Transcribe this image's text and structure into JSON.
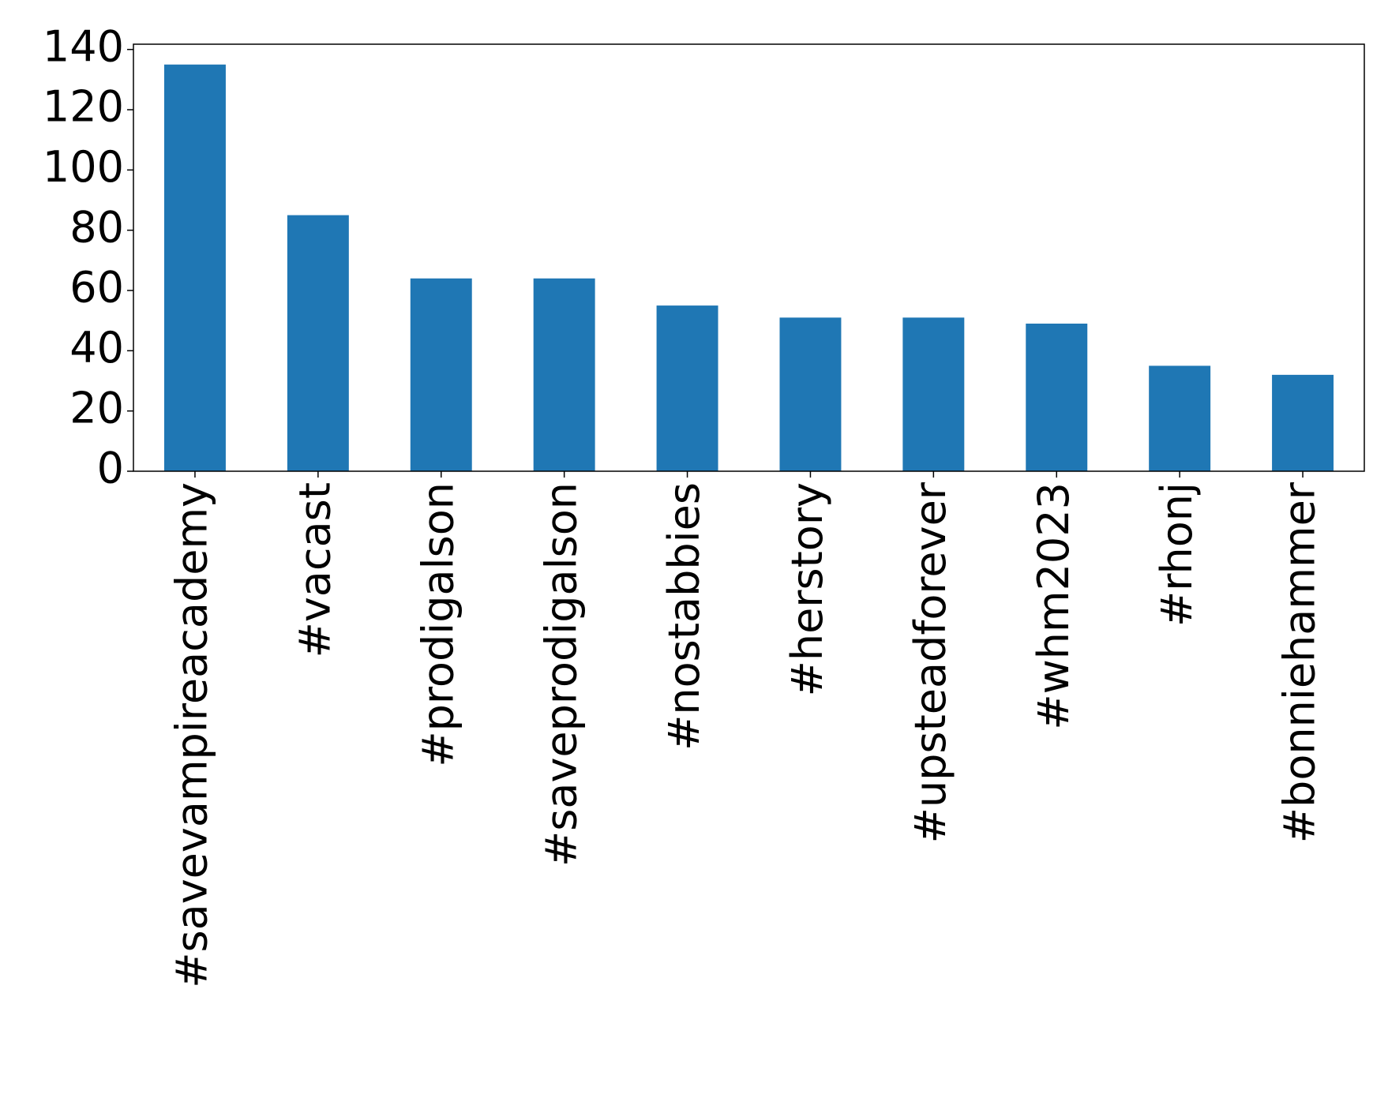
{
  "chart_data": {
    "type": "bar",
    "categories": [
      "#savevampireacademy",
      "#vacast",
      "#prodigalson",
      "#saveprodigalson",
      "#nostabbies",
      "#herstory",
      "#upsteadforever",
      "#whm2023",
      "#rhonj",
      "#bonniehammer"
    ],
    "values": [
      135,
      85,
      64,
      64,
      55,
      51,
      51,
      49,
      35,
      32
    ],
    "color": "#1f77b4",
    "ylim": [
      0,
      141.75
    ],
    "yticks": [
      0,
      20,
      40,
      60,
      80,
      100,
      120,
      140
    ],
    "grid": false
  }
}
